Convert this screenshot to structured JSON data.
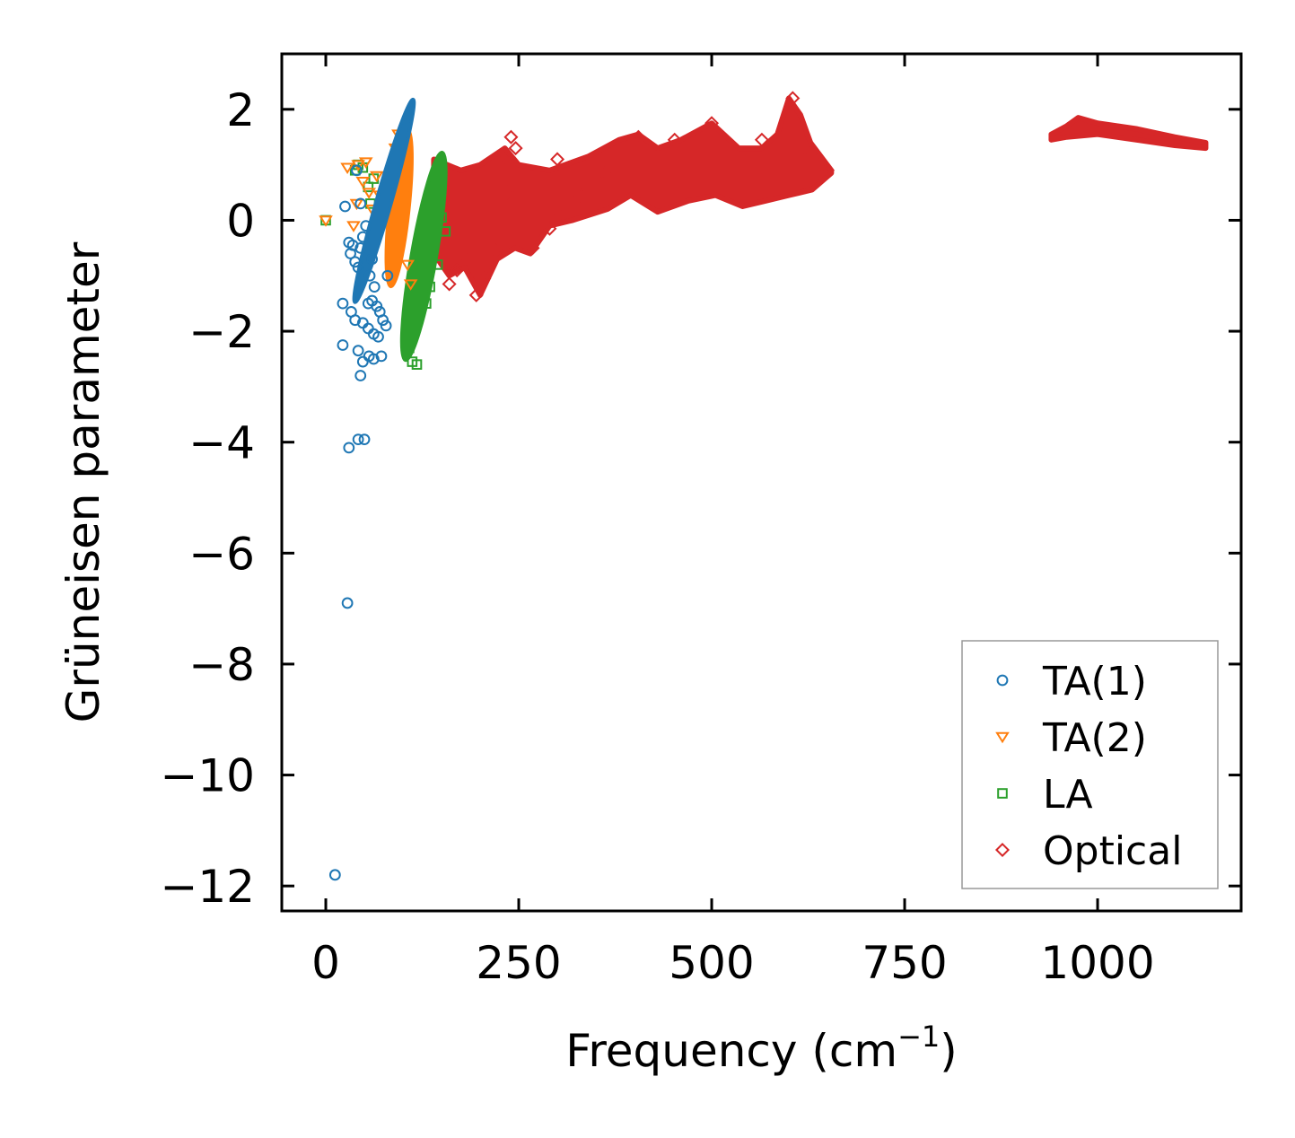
{
  "chart_data": {
    "type": "scatter",
    "title": "",
    "xlabel": "Frequency (cm",
    "xlabel_sup": "−1",
    "xlabel_close": ")",
    "ylabel": "Grüneisen parameter",
    "xlim": [
      -57,
      1186
    ],
    "ylim": [
      -12.45,
      3.0
    ],
    "x_ticks": [
      0,
      250,
      500,
      750,
      1000
    ],
    "x_tick_labels": [
      "0",
      "250",
      "500",
      "750",
      "1000"
    ],
    "y_ticks": [
      2,
      0,
      -2,
      -4,
      -6,
      -8,
      -10,
      -12
    ],
    "y_tick_labels": [
      "2",
      "0",
      "−2",
      "−4",
      "−6",
      "−8",
      "−10",
      "−12"
    ],
    "grid": false,
    "legend_position": "bottom-right",
    "series": [
      {
        "name": "TA(1)",
        "marker": "circle",
        "color": "#1f77b4",
        "points": [
          [
            12,
            -11.8
          ],
          [
            28,
            -6.9
          ],
          [
            30,
            -4.1
          ],
          [
            42,
            -3.95
          ],
          [
            50,
            -3.95
          ],
          [
            22,
            -2.25
          ],
          [
            45,
            -2.8
          ],
          [
            42,
            -2.35
          ],
          [
            48,
            -2.55
          ],
          [
            56,
            -2.45
          ],
          [
            62,
            -2.5
          ],
          [
            72,
            -2.45
          ],
          [
            22,
            -1.5
          ],
          [
            33,
            -1.65
          ],
          [
            38,
            -1.8
          ],
          [
            48,
            -1.85
          ],
          [
            55,
            -1.95
          ],
          [
            62,
            -2.05
          ],
          [
            68,
            -2.1
          ],
          [
            55,
            -1.5
          ],
          [
            60,
            -1.45
          ],
          [
            66,
            -1.55
          ],
          [
            70,
            -1.65
          ],
          [
            25,
            0.25
          ],
          [
            30,
            -0.4
          ],
          [
            32,
            -0.6
          ],
          [
            38,
            -0.75
          ],
          [
            42,
            -0.85
          ],
          [
            45,
            -0.5
          ],
          [
            48,
            -0.3
          ],
          [
            52,
            -0.1
          ],
          [
            40,
            0.9
          ],
          [
            45,
            0.3
          ],
          [
            35,
            -0.45
          ],
          [
            60,
            -0.7
          ],
          [
            57,
            -1.0
          ],
          [
            63,
            -1.2
          ],
          [
            74,
            -1.8
          ],
          [
            78,
            -1.9
          ],
          [
            80,
            -1.0
          ]
        ],
        "band": {
          "x_start": 58,
          "x_end": 93,
          "y_low": -1.55,
          "y_high": 2.25
        }
      },
      {
        "name": "TA(2)",
        "marker": "triangle-down",
        "color": "#ff7f0e",
        "points": [
          [
            0,
            0.0
          ],
          [
            28,
            0.95
          ],
          [
            42,
            1.0
          ],
          [
            52,
            1.05
          ],
          [
            40,
            0.3
          ],
          [
            36,
            -0.1
          ],
          [
            48,
            0.7
          ],
          [
            56,
            0.5
          ],
          [
            60,
            0.2
          ],
          [
            66,
            0.8
          ],
          [
            70,
            0.45
          ],
          [
            90,
            1.3
          ],
          [
            94,
            1.55
          ],
          [
            100,
            1.4
          ],
          [
            104,
            1.1
          ],
          [
            106,
            -0.8
          ],
          [
            110,
            -1.15
          ]
        ],
        "band": {
          "x_start": 72,
          "x_end": 118,
          "y_low": -1.2,
          "y_high": 1.65
        }
      },
      {
        "name": "LA",
        "marker": "square",
        "color": "#2ca02c",
        "points": [
          [
            0,
            0.0
          ],
          [
            38,
            0.9
          ],
          [
            42,
            1.0
          ],
          [
            48,
            0.95
          ],
          [
            55,
            0.6
          ],
          [
            62,
            0.75
          ],
          [
            58,
            0.3
          ],
          [
            140,
            0.6
          ],
          [
            148,
            0.3
          ],
          [
            150,
            0.05
          ],
          [
            155,
            -0.2
          ],
          [
            145,
            -0.8
          ],
          [
            135,
            -1.2
          ],
          [
            130,
            -1.5
          ],
          [
            112,
            -2.55
          ],
          [
            118,
            -2.6
          ],
          [
            108,
            -2.3
          ]
        ],
        "band": {
          "x_start": 98,
          "x_end": 156,
          "y_low": -2.55,
          "y_high": 1.25
        }
      },
      {
        "name": "Optical",
        "marker": "diamond",
        "color": "#d62728",
        "points": [
          [
            140,
            0.3
          ],
          [
            150,
            -0.4
          ],
          [
            160,
            -1.15
          ],
          [
            170,
            -0.9
          ],
          [
            185,
            -0.7
          ],
          [
            195,
            -1.35
          ],
          [
            205,
            -1.05
          ],
          [
            220,
            -0.55
          ],
          [
            232,
            1.15
          ],
          [
            240,
            1.5
          ],
          [
            246,
            1.3
          ],
          [
            255,
            -0.45
          ],
          [
            268,
            -0.5
          ],
          [
            290,
            -0.15
          ],
          [
            305,
            0.1
          ],
          [
            330,
            0.45
          ],
          [
            360,
            0.85
          ],
          [
            405,
            1.5
          ],
          [
            452,
            1.45
          ],
          [
            500,
            1.75
          ],
          [
            565,
            1.45
          ],
          [
            605,
            2.2
          ],
          [
            628,
            1.2
          ],
          [
            650,
            0.9
          ],
          [
            235,
            0.5
          ],
          [
            300,
            1.1
          ]
        ],
        "clusters": [
          {
            "x_start": 140,
            "x_end": 655,
            "upper": [
              [
                140,
                1.1
              ],
              [
                175,
                0.9
              ],
              [
                200,
                1.0
              ],
              [
                232,
                1.3
              ],
              [
                250,
                1.0
              ],
              [
                290,
                0.9
              ],
              [
                340,
                1.15
              ],
              [
                380,
                1.45
              ],
              [
                405,
                1.55
              ],
              [
                430,
                1.3
              ],
              [
                460,
                1.45
              ],
              [
                500,
                1.75
              ],
              [
                535,
                1.3
              ],
              [
                565,
                1.3
              ],
              [
                585,
                1.55
              ],
              [
                600,
                2.2
              ],
              [
                615,
                1.9
              ],
              [
                628,
                1.4
              ],
              [
                655,
                0.9
              ]
            ],
            "lower": [
              [
                655,
                0.85
              ],
              [
                630,
                0.55
              ],
              [
                600,
                0.45
              ],
              [
                570,
                0.35
              ],
              [
                540,
                0.25
              ],
              [
                505,
                0.45
              ],
              [
                470,
                0.35
              ],
              [
                430,
                0.15
              ],
              [
                395,
                0.45
              ],
              [
                365,
                0.2
              ],
              [
                320,
                0.0
              ],
              [
                290,
                -0.1
              ],
              [
                265,
                -0.6
              ],
              [
                245,
                -0.5
              ],
              [
                222,
                -0.7
              ],
              [
                200,
                -1.35
              ],
              [
                180,
                -0.85
              ],
              [
                160,
                -1.0
              ],
              [
                140,
                -0.6
              ]
            ]
          },
          {
            "x_start": 940,
            "x_end": 1140,
            "upper": [
              [
                940,
                1.55
              ],
              [
                960,
                1.7
              ],
              [
                975,
                1.85
              ],
              [
                1000,
                1.75
              ],
              [
                1050,
                1.65
              ],
              [
                1100,
                1.5
              ],
              [
                1140,
                1.4
              ]
            ],
            "lower": [
              [
                1140,
                1.3
              ],
              [
                1100,
                1.35
              ],
              [
                1050,
                1.45
              ],
              [
                1000,
                1.55
              ],
              [
                960,
                1.5
              ],
              [
                940,
                1.45
              ]
            ]
          }
        ]
      }
    ]
  }
}
